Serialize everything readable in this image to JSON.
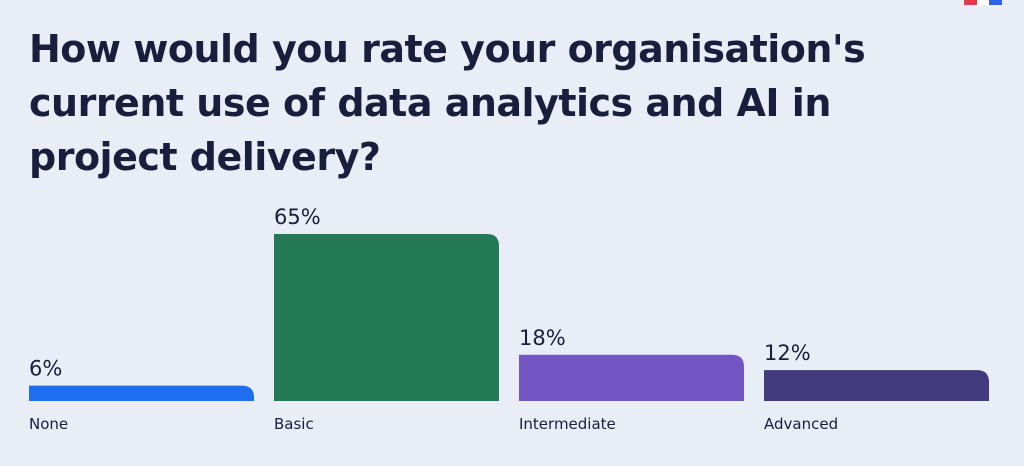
{
  "chart_data": {
    "type": "bar",
    "title": "How would you rate your organisation's current use of data analytics and AI in project delivery?",
    "categories": [
      "None",
      "Basic",
      "Intermediate",
      "Advanced"
    ],
    "values": [
      6,
      65,
      18,
      12
    ],
    "value_labels": [
      "6%",
      "65%",
      "18%",
      "12%"
    ],
    "colors": [
      "#1e6ef0",
      "#237a57",
      "#7156c4",
      "#433a7e"
    ],
    "ylim": [
      0,
      65
    ],
    "grid": false,
    "legend": "none"
  },
  "logo": {
    "colors": [
      "#e5374b",
      "#ffffff",
      "#2f62e3"
    ]
  }
}
